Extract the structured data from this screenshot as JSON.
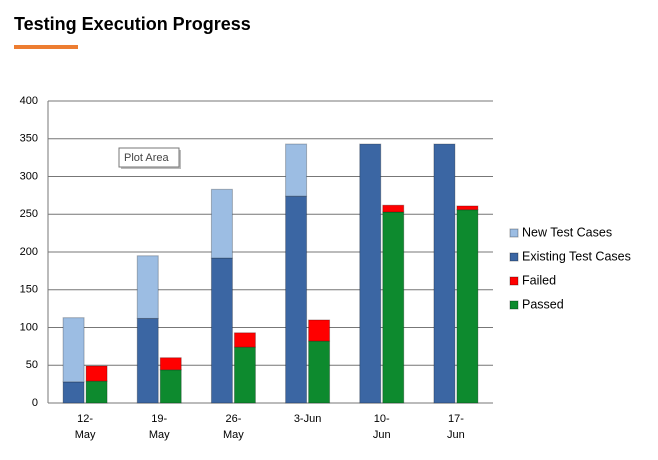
{
  "chart_data": {
    "type": "stacked_bar",
    "title": "Testing Execution Progress",
    "tooltip": "Plot Area",
    "categories": [
      "12-May",
      "19-May",
      "26-May",
      "3-Jun",
      "10-Jun",
      "17-Jun"
    ],
    "series": [
      {
        "name": "Existing Test Cases",
        "color": "#3b66a3",
        "stack": 0,
        "values": [
          28,
          112,
          192,
          274,
          343,
          343
        ]
      },
      {
        "name": "New Test Cases",
        "color": "#9cbde3",
        "stack": 0,
        "values": [
          85,
          83,
          91,
          69,
          0,
          0
        ]
      },
      {
        "name": "Passed",
        "color": "#0d8a2e",
        "stack": 1,
        "values": [
          29,
          44,
          74,
          82,
          253,
          256
        ]
      },
      {
        "name": "Failed",
        "color": "#ff0000",
        "stack": 1,
        "values": [
          20,
          16,
          19,
          28,
          9,
          5
        ]
      }
    ],
    "legend_order": [
      1,
      0,
      3,
      2
    ],
    "ylim": [
      0,
      400
    ],
    "yticks": [
      0,
      50,
      100,
      150,
      200,
      250,
      300,
      350,
      400
    ],
    "grid": true,
    "legend": "right"
  }
}
